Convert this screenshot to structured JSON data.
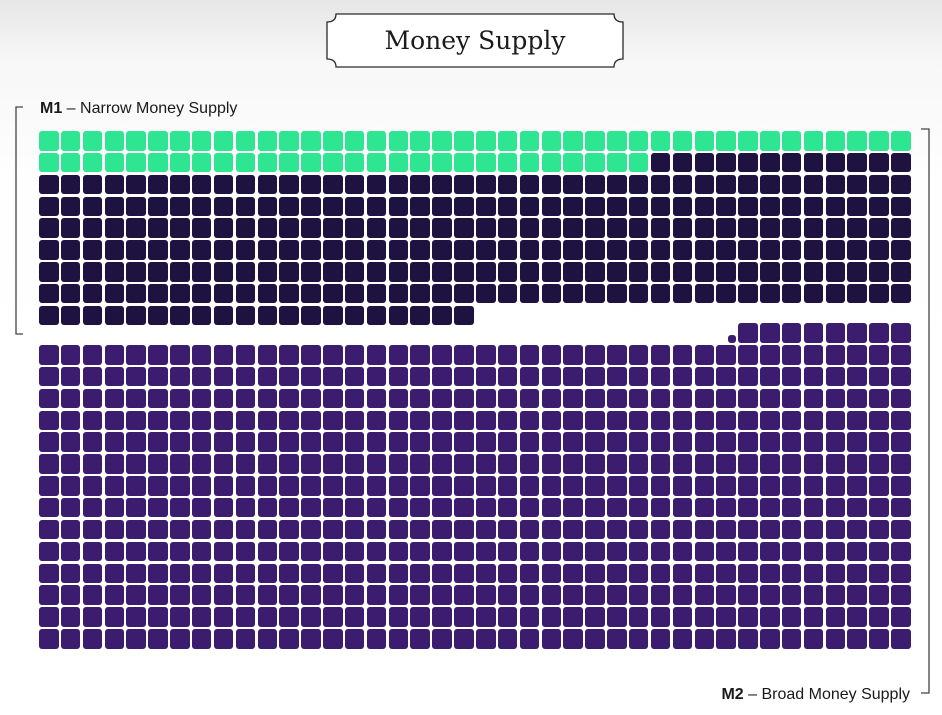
{
  "title": "Money Supply",
  "m1": {
    "abbr": "M1",
    "label": "Narrow Money Supply"
  },
  "m2": {
    "abbr": "M2",
    "label": "Broad Money Supply"
  },
  "colors": {
    "currency": "#2ee592",
    "deposits": "#1d1240",
    "broad": "#3b1c6e",
    "bracket": "#444444"
  },
  "blocks": {
    "columns": 40,
    "currency_count": 68,
    "deposits_count": 272,
    "broad_count": 568,
    "small_squares": 2
  }
}
